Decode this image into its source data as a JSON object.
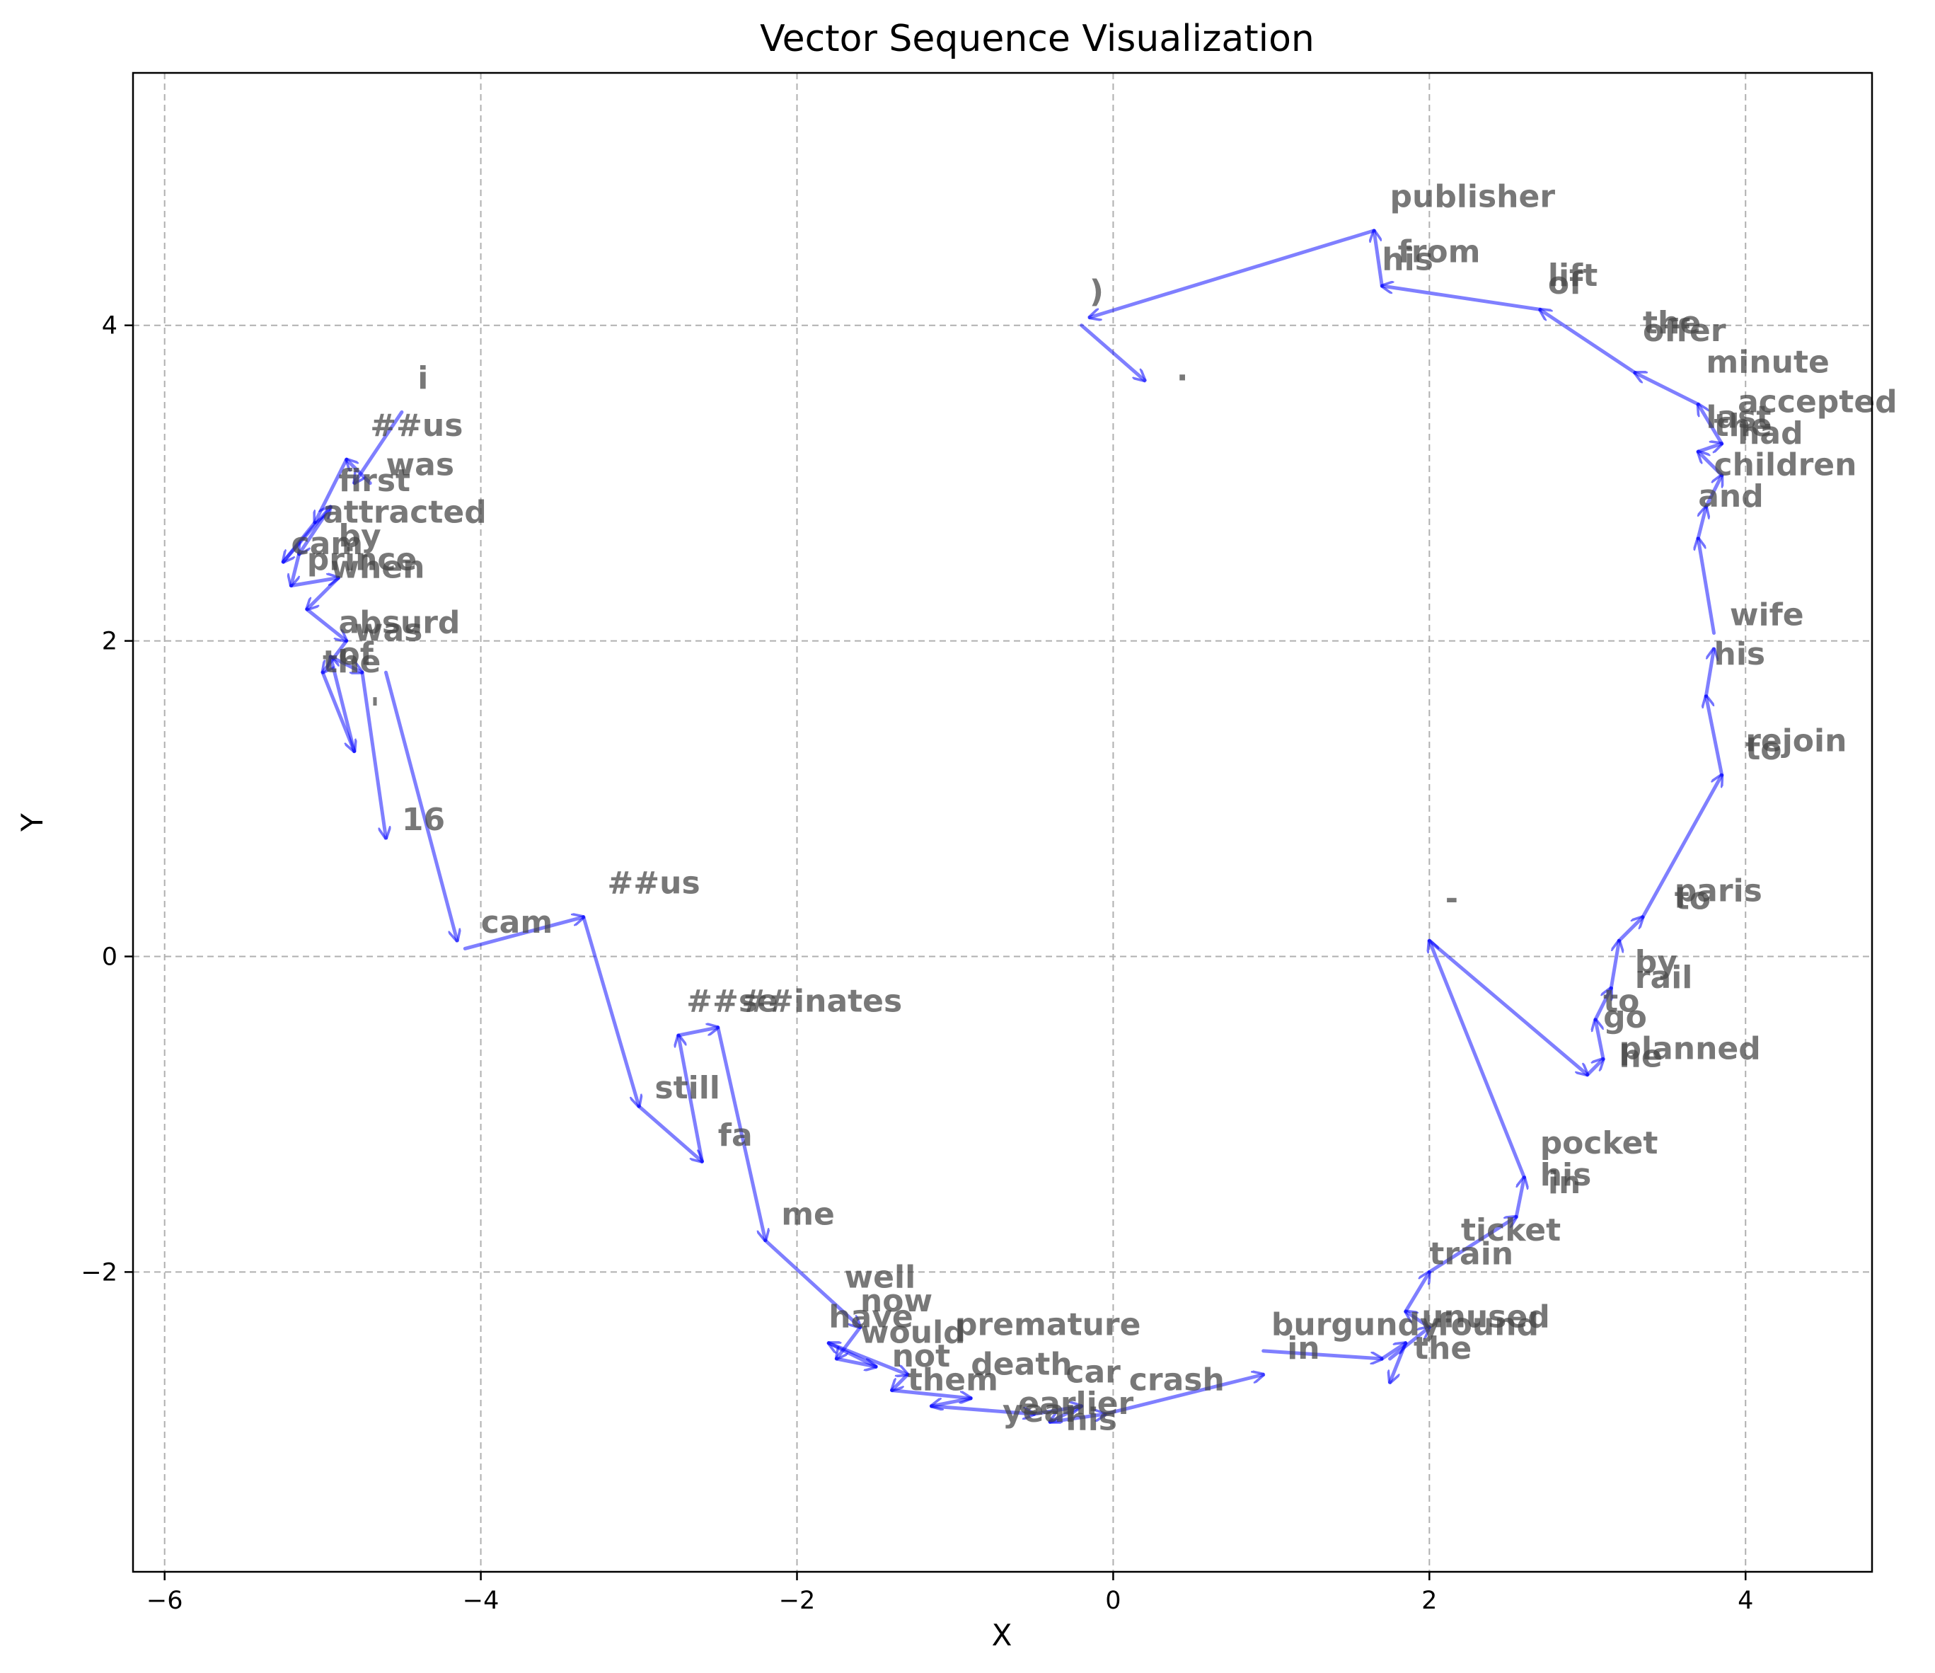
{
  "chart_data": {
    "type": "quiver",
    "title": "Vector Sequence Visualization",
    "xlabel": "X",
    "ylabel": "Y",
    "xlim": [
      -6.2,
      4.8
    ],
    "ylim": [
      -3.9,
      5.6
    ],
    "xticks": [
      -6,
      -4,
      -2,
      0,
      2,
      4
    ],
    "yticks": [
      -2,
      0,
      2,
      4
    ],
    "xtick_labels": [
      "−6",
      "−4",
      "−2",
      "0",
      "2",
      "4"
    ],
    "ytick_labels": [
      "−2",
      "0",
      "2",
      "4"
    ],
    "grid": true,
    "arrow_color": "#0000ff",
    "tokens": [
      {
        "text": "i",
        "x": -4.4,
        "y": 3.6
      },
      {
        "text": "##us",
        "x": -4.7,
        "y": 3.3
      },
      {
        "text": "was",
        "x": -4.6,
        "y": 3.05
      },
      {
        "text": "first",
        "x": -4.9,
        "y": 2.95
      },
      {
        "text": "attracted",
        "x": -5.0,
        "y": 2.75
      },
      {
        "text": "by",
        "x": -4.9,
        "y": 2.6
      },
      {
        "text": "cam",
        "x": -5.2,
        "y": 2.55
      },
      {
        "text": "prince",
        "x": -5.1,
        "y": 2.45
      },
      {
        "text": "when",
        "x": -4.95,
        "y": 2.4
      },
      {
        "text": "absurd",
        "x": -4.9,
        "y": 2.05
      },
      {
        "text": "was",
        "x": -4.8,
        "y": 2.0
      },
      {
        "text": "of",
        "x": -4.9,
        "y": 1.85
      },
      {
        "text": "the",
        "x": -5.0,
        "y": 1.8
      },
      {
        "text": "'",
        "x": -4.7,
        "y": 1.5
      },
      {
        "text": "16",
        "x": -4.5,
        "y": 0.8
      },
      {
        "text": "cam",
        "x": -4.0,
        "y": 0.15
      },
      {
        "text": "##us",
        "x": -3.2,
        "y": 0.4
      },
      {
        "text": "##se",
        "x": -2.7,
        "y": -0.35
      },
      {
        "text": "##inates",
        "x": -2.35,
        "y": -0.35
      },
      {
        "text": "still",
        "x": -2.9,
        "y": -0.9
      },
      {
        "text": "fa",
        "x": -2.5,
        "y": -1.2
      },
      {
        "text": "me",
        "x": -2.1,
        "y": -1.7
      },
      {
        "text": "well",
        "x": -1.7,
        "y": -2.1
      },
      {
        "text": "now",
        "x": -1.6,
        "y": -2.25
      },
      {
        "text": "have",
        "x": -1.8,
        "y": -2.35
      },
      {
        "text": "would",
        "x": -1.6,
        "y": -2.45
      },
      {
        "text": "premature",
        "x": -1.0,
        "y": -2.4
      },
      {
        "text": "not",
        "x": -1.4,
        "y": -2.6
      },
      {
        "text": "death",
        "x": -0.9,
        "y": -2.65
      },
      {
        "text": "them",
        "x": -1.3,
        "y": -2.75
      },
      {
        "text": "car",
        "x": -0.3,
        "y": -2.7
      },
      {
        "text": "crash",
        "x": 0.1,
        "y": -2.75
      },
      {
        "text": "earlier",
        "x": -0.6,
        "y": -2.9
      },
      {
        "text": "year",
        "x": -0.7,
        "y": -2.95
      },
      {
        "text": "his",
        "x": -0.3,
        "y": -3.0
      },
      {
        "text": "in",
        "x": 1.1,
        "y": -2.55
      },
      {
        "text": "burgundy",
        "x": 1.0,
        "y": -2.4
      },
      {
        "text": "unused",
        "x": 1.95,
        "y": -2.35
      },
      {
        "text": "found",
        "x": 2.05,
        "y": -2.4
      },
      {
        "text": "the",
        "x": 1.9,
        "y": -2.55
      },
      {
        "text": "train",
        "x": 2.0,
        "y": -1.95
      },
      {
        "text": "ticket",
        "x": 2.2,
        "y": -1.8
      },
      {
        "text": "his",
        "x": 2.7,
        "y": -1.45
      },
      {
        "text": "in",
        "x": 2.75,
        "y": -1.5
      },
      {
        "text": "pocket",
        "x": 2.7,
        "y": -1.25
      },
      {
        "text": "-",
        "x": 2.1,
        "y": 0.3
      },
      {
        "text": "planned",
        "x": 3.2,
        "y": -0.65
      },
      {
        "text": "he",
        "x": 3.2,
        "y": -0.7
      },
      {
        "text": "go",
        "x": 3.1,
        "y": -0.45
      },
      {
        "text": "to",
        "x": 3.1,
        "y": -0.35
      },
      {
        "text": "rail",
        "x": 3.3,
        "y": -0.2
      },
      {
        "text": "by",
        "x": 3.3,
        "y": -0.1
      },
      {
        "text": "to",
        "x": 3.55,
        "y": 0.3
      },
      {
        "text": "paris",
        "x": 3.55,
        "y": 0.35
      },
      {
        "text": "to",
        "x": 4.0,
        "y": 1.25
      },
      {
        "text": "rejoin",
        "x": 4.0,
        "y": 1.3
      },
      {
        "text": "his",
        "x": 3.8,
        "y": 1.85
      },
      {
        "text": "wife",
        "x": 3.9,
        "y": 2.1
      },
      {
        "text": "and",
        "x": 3.7,
        "y": 2.85
      },
      {
        "text": "children",
        "x": 3.8,
        "y": 3.05
      },
      {
        "text": "had",
        "x": 3.95,
        "y": 3.25
      },
      {
        "text": "the",
        "x": 3.8,
        "y": 3.3
      },
      {
        "text": "last",
        "x": 3.75,
        "y": 3.35
      },
      {
        "text": "accepted",
        "x": 3.95,
        "y": 3.45
      },
      {
        "text": "minute",
        "x": 3.75,
        "y": 3.7
      },
      {
        "text": "offer",
        "x": 3.35,
        "y": 3.9
      },
      {
        "text": "the",
        "x": 3.35,
        "y": 3.95
      },
      {
        "text": "lift",
        "x": 2.75,
        "y": 4.25
      },
      {
        "text": "of",
        "x": 2.75,
        "y": 4.2
      },
      {
        "text": "his",
        "x": 1.7,
        "y": 4.35
      },
      {
        "text": "from",
        "x": 1.8,
        "y": 4.4
      },
      {
        "text": "publisher",
        "x": 1.75,
        "y": 4.75
      },
      {
        "text": ")",
        "x": -0.15,
        "y": 4.15
      },
      {
        "text": ".",
        "x": 0.4,
        "y": 3.65
      }
    ],
    "vectors": [
      [
        [
          -4.5,
          3.45
        ],
        [
          -4.8,
          3.0
        ]
      ],
      [
        [
          -4.7,
          3.0
        ],
        [
          -4.85,
          3.15
        ]
      ],
      [
        [
          -4.85,
          3.15
        ],
        [
          -5.05,
          2.75
        ]
      ],
      [
        [
          -5.05,
          2.75
        ],
        [
          -5.25,
          2.5
        ]
      ],
      [
        [
          -5.25,
          2.5
        ],
        [
          -4.95,
          2.85
        ]
      ],
      [
        [
          -4.95,
          2.85
        ],
        [
          -5.15,
          2.55
        ]
      ],
      [
        [
          -5.15,
          2.55
        ],
        [
          -5.2,
          2.35
        ]
      ],
      [
        [
          -5.2,
          2.35
        ],
        [
          -4.9,
          2.4
        ]
      ],
      [
        [
          -4.9,
          2.4
        ],
        [
          -5.1,
          2.2
        ]
      ],
      [
        [
          -5.1,
          2.2
        ],
        [
          -4.85,
          2.0
        ]
      ],
      [
        [
          -4.85,
          2.0
        ],
        [
          -5.0,
          1.8
        ]
      ],
      [
        [
          -5.0,
          1.8
        ],
        [
          -4.8,
          1.3
        ]
      ],
      [
        [
          -4.8,
          1.3
        ],
        [
          -4.95,
          1.9
        ]
      ],
      [
        [
          -4.95,
          1.9
        ],
        [
          -4.75,
          1.8
        ]
      ],
      [
        [
          -4.75,
          1.8
        ],
        [
          -4.6,
          0.75
        ]
      ],
      [
        [
          -4.6,
          1.8
        ],
        [
          -4.15,
          0.1
        ]
      ],
      [
        [
          -4.1,
          0.05
        ],
        [
          -3.35,
          0.25
        ]
      ],
      [
        [
          -3.35,
          0.25
        ],
        [
          -3.0,
          -0.95
        ]
      ],
      [
        [
          -3.0,
          -0.95
        ],
        [
          -2.6,
          -1.3
        ]
      ],
      [
        [
          -2.6,
          -1.3
        ],
        [
          -2.75,
          -0.5
        ]
      ],
      [
        [
          -2.75,
          -0.5
        ],
        [
          -2.5,
          -0.45
        ]
      ],
      [
        [
          -2.5,
          -0.45
        ],
        [
          -2.2,
          -1.8
        ]
      ],
      [
        [
          -2.2,
          -1.8
        ],
        [
          -1.6,
          -2.35
        ]
      ],
      [
        [
          -1.6,
          -2.35
        ],
        [
          -1.75,
          -2.55
        ]
      ],
      [
        [
          -1.75,
          -2.55
        ],
        [
          -1.5,
          -2.6
        ]
      ],
      [
        [
          -1.5,
          -2.6
        ],
        [
          -1.8,
          -2.45
        ]
      ],
      [
        [
          -1.8,
          -2.45
        ],
        [
          -1.3,
          -2.65
        ]
      ],
      [
        [
          -1.3,
          -2.65
        ],
        [
          -1.4,
          -2.75
        ]
      ],
      [
        [
          -1.4,
          -2.75
        ],
        [
          -0.9,
          -2.8
        ]
      ],
      [
        [
          -0.9,
          -2.8
        ],
        [
          -1.15,
          -2.85
        ]
      ],
      [
        [
          -1.15,
          -2.85
        ],
        [
          -0.5,
          -2.9
        ]
      ],
      [
        [
          -0.5,
          -2.9
        ],
        [
          -0.2,
          -2.85
        ]
      ],
      [
        [
          -0.2,
          -2.85
        ],
        [
          -0.4,
          -2.95
        ]
      ],
      [
        [
          -0.4,
          -2.95
        ],
        [
          -0.05,
          -2.9
        ]
      ],
      [
        [
          -0.05,
          -2.9
        ],
        [
          0.95,
          -2.65
        ]
      ],
      [
        [
          0.95,
          -2.5
        ],
        [
          1.7,
          -2.55
        ]
      ],
      [
        [
          1.7,
          -2.55
        ],
        [
          1.85,
          -2.45
        ]
      ],
      [
        [
          1.85,
          -2.45
        ],
        [
          1.75,
          -2.7
        ]
      ],
      [
        [
          1.75,
          -2.55
        ],
        [
          2.0,
          -2.35
        ]
      ],
      [
        [
          2.0,
          -2.35
        ],
        [
          1.85,
          -2.25
        ]
      ],
      [
        [
          1.85,
          -2.25
        ],
        [
          2.0,
          -2.0
        ]
      ],
      [
        [
          2.0,
          -2.0
        ],
        [
          2.55,
          -1.65
        ]
      ],
      [
        [
          2.55,
          -1.65
        ],
        [
          2.6,
          -1.4
        ]
      ],
      [
        [
          2.6,
          -1.4
        ],
        [
          2.0,
          0.1
        ]
      ],
      [
        [
          2.0,
          0.1
        ],
        [
          3.0,
          -0.75
        ]
      ],
      [
        [
          3.0,
          -0.75
        ],
        [
          3.1,
          -0.65
        ]
      ],
      [
        [
          3.1,
          -0.65
        ],
        [
          3.05,
          -0.4
        ]
      ],
      [
        [
          3.05,
          -0.4
        ],
        [
          3.15,
          -0.2
        ]
      ],
      [
        [
          3.15,
          -0.2
        ],
        [
          3.2,
          0.1
        ]
      ],
      [
        [
          3.2,
          0.1
        ],
        [
          3.35,
          0.25
        ]
      ],
      [
        [
          3.35,
          0.25
        ],
        [
          3.85,
          1.15
        ]
      ],
      [
        [
          3.85,
          1.15
        ],
        [
          3.75,
          1.65
        ]
      ],
      [
        [
          3.75,
          1.65
        ],
        [
          3.8,
          1.95
        ]
      ],
      [
        [
          3.8,
          2.05
        ],
        [
          3.7,
          2.65
        ]
      ],
      [
        [
          3.7,
          2.65
        ],
        [
          3.75,
          2.85
        ]
      ],
      [
        [
          3.75,
          2.85
        ],
        [
          3.85,
          3.05
        ]
      ],
      [
        [
          3.85,
          3.05
        ],
        [
          3.7,
          3.2
        ]
      ],
      [
        [
          3.7,
          3.2
        ],
        [
          3.85,
          3.25
        ]
      ],
      [
        [
          3.85,
          3.25
        ],
        [
          3.7,
          3.5
        ]
      ],
      [
        [
          3.7,
          3.5
        ],
        [
          3.3,
          3.7
        ]
      ],
      [
        [
          3.3,
          3.7
        ],
        [
          2.7,
          4.1
        ]
      ],
      [
        [
          2.7,
          4.1
        ],
        [
          1.7,
          4.25
        ]
      ],
      [
        [
          1.7,
          4.25
        ],
        [
          1.65,
          4.6
        ]
      ],
      [
        [
          1.65,
          4.6
        ],
        [
          -0.15,
          4.05
        ]
      ],
      [
        [
          -0.2,
          4.0
        ],
        [
          0.2,
          3.65
        ]
      ]
    ]
  }
}
